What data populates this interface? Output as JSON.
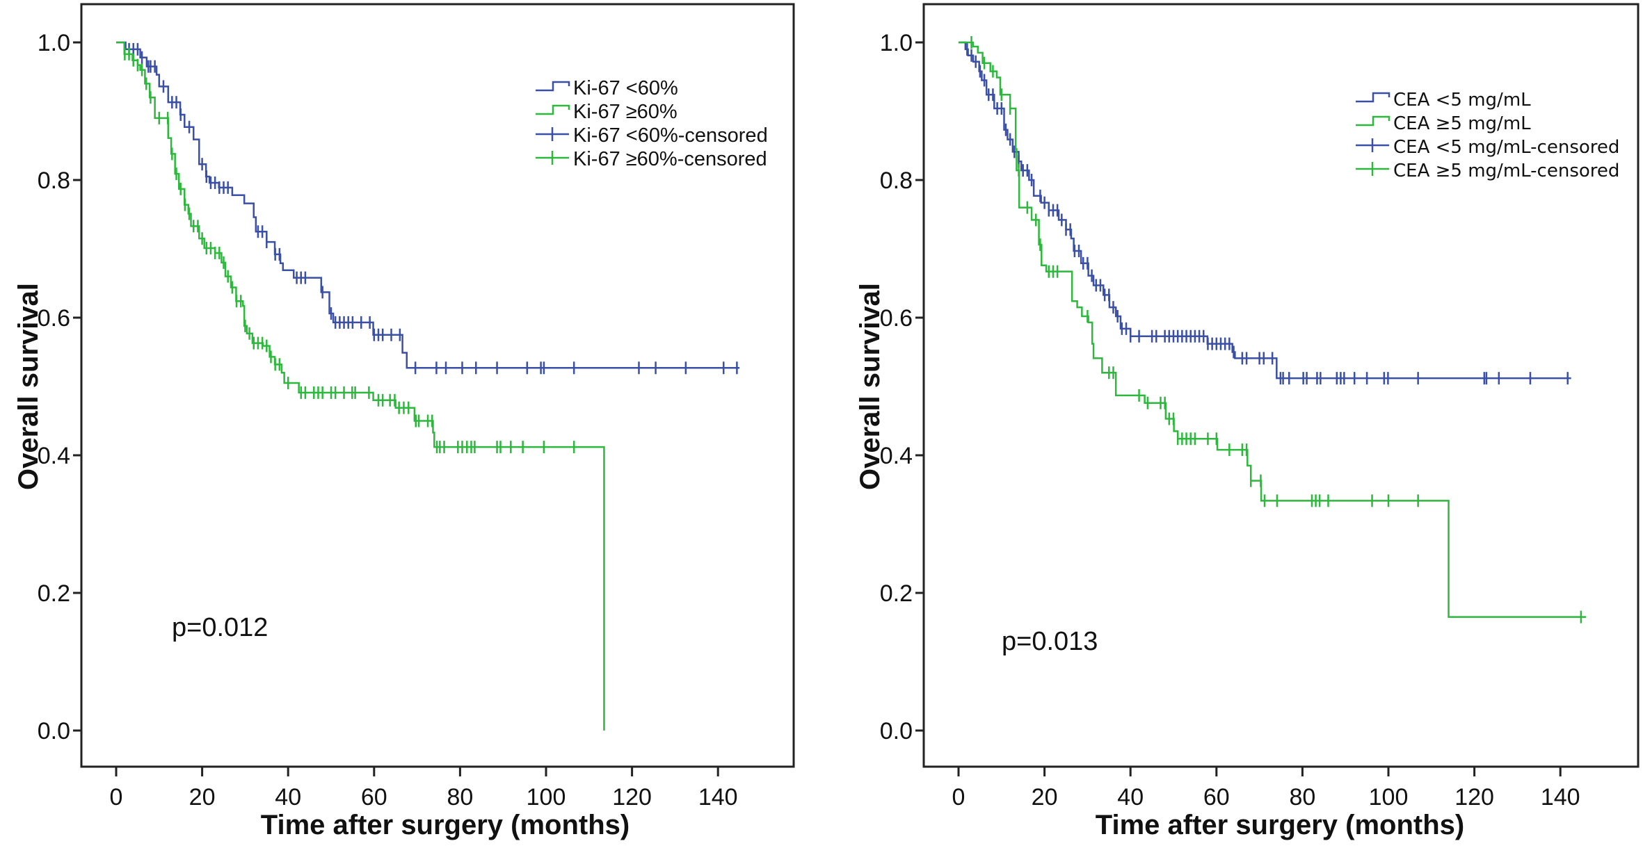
{
  "chart_data": [
    {
      "type": "line",
      "subtype": "kaplan-meier",
      "xlabel": "Time after surgery (months)",
      "ylabel": "Overall survival",
      "xlim": [
        -8,
        152
      ],
      "ylim": [
        -0.08,
        1.04
      ],
      "xticks": [
        "0",
        "20",
        "40",
        "60",
        "80",
        "100",
        "120",
        "140"
      ],
      "yticks": [
        "0.0",
        "0.2",
        "0.4",
        "0.6",
        "0.8",
        "1.0"
      ],
      "annotation": "p=0.012",
      "legend_position": "top-right",
      "legend": [
        "Ki-67 <60%",
        "Ki-67 ≥60%",
        "Ki-67 <60%-censored",
        "Ki-67 ≥60%-censored"
      ],
      "series": [
        {
          "name": "Ki-67 <60%",
          "color": "#3a4fa6",
          "end": 145,
          "steps": [
            [
              0.3,
              1.0
            ],
            [
              2.2,
              0.99
            ],
            [
              5.6,
              0.978
            ],
            [
              7.1,
              0.965
            ],
            [
              9.4,
              0.953
            ],
            [
              10,
              0.936
            ],
            [
              12.1,
              0.913
            ],
            [
              14.9,
              0.895
            ],
            [
              15.9,
              0.877
            ],
            [
              18,
              0.859
            ],
            [
              19.3,
              0.823
            ],
            [
              20.9,
              0.805
            ],
            [
              21.7,
              0.796
            ],
            [
              23.9,
              0.789
            ],
            [
              27,
              0.778
            ],
            [
              29.8,
              0.766
            ],
            [
              32,
              0.746
            ],
            [
              32.5,
              0.725
            ],
            [
              35,
              0.71
            ],
            [
              36.9,
              0.692
            ],
            [
              38.2,
              0.679
            ],
            [
              38.8,
              0.669
            ],
            [
              41.3,
              0.658
            ],
            [
              47.7,
              0.637
            ],
            [
              49.6,
              0.606
            ],
            [
              50.5,
              0.593
            ],
            [
              59.8,
              0.575
            ],
            [
              66.6,
              0.549
            ],
            [
              67.6,
              0.527
            ]
          ],
          "censored": [
            3,
            4,
            5,
            6,
            7.5,
            8,
            9,
            11,
            13,
            14,
            15,
            17,
            20,
            21,
            22,
            23,
            24,
            25,
            26,
            33,
            34,
            35,
            37,
            38,
            42,
            43,
            44,
            48,
            50,
            51,
            52,
            53,
            54,
            55,
            57,
            59,
            60,
            61,
            62,
            64,
            66,
            69.6,
            74.5,
            76.7,
            80.5,
            83.7,
            88.6,
            95.6,
            98.8,
            99.5,
            106.5,
            121.6,
            125.5,
            132.5,
            141.3,
            144.4
          ]
        },
        {
          "name": "Ki-67 ≥60%",
          "color": "#2db83d",
          "end": 113.5,
          "final_drop": 0.0,
          "steps": [
            [
              0.3,
              1.0
            ],
            [
              1.9,
              0.983
            ],
            [
              3.8,
              0.974
            ],
            [
              5,
              0.967
            ],
            [
              5.6,
              0.96
            ],
            [
              6.7,
              0.94
            ],
            [
              7.8,
              0.92
            ],
            [
              9,
              0.89
            ],
            [
              12.1,
              0.861
            ],
            [
              12.8,
              0.838
            ],
            [
              13.7,
              0.809
            ],
            [
              14.6,
              0.787
            ],
            [
              15.9,
              0.764
            ],
            [
              16.8,
              0.751
            ],
            [
              17.4,
              0.733
            ],
            [
              19.3,
              0.715
            ],
            [
              20.5,
              0.701
            ],
            [
              23,
              0.694
            ],
            [
              24.5,
              0.68
            ],
            [
              25.4,
              0.66
            ],
            [
              26.7,
              0.644
            ],
            [
              27.9,
              0.624
            ],
            [
              29.5,
              0.617
            ],
            [
              29.8,
              0.588
            ],
            [
              30.4,
              0.577
            ],
            [
              31.7,
              0.563
            ],
            [
              34.1,
              0.559
            ],
            [
              35.7,
              0.543
            ],
            [
              36.9,
              0.532
            ],
            [
              38.5,
              0.52
            ],
            [
              39.1,
              0.505
            ],
            [
              42.5,
              0.491
            ],
            [
              59.8,
              0.48
            ],
            [
              65,
              0.469
            ],
            [
              69.4,
              0.45
            ],
            [
              73.7,
              0.433
            ],
            [
              74,
              0.412
            ]
          ],
          "censored": [
            2,
            3,
            4,
            5,
            6,
            7,
            8,
            10,
            12,
            13,
            14,
            15,
            16,
            17,
            18,
            19,
            20,
            21,
            22,
            23,
            24,
            25,
            26,
            27,
            28,
            29,
            30,
            31,
            32,
            33,
            34,
            35,
            36,
            37,
            38,
            40,
            43,
            44,
            46,
            47,
            48,
            50,
            51,
            53,
            54.9,
            55.6,
            58.8,
            61,
            62,
            63.7,
            64.8,
            65.8,
            66.9,
            68,
            69.7,
            70.4,
            72.5,
            73.5,
            74.6,
            75.3,
            76.3,
            79.5,
            80.5,
            81.6,
            82.6,
            83.4,
            88.6,
            89.4,
            91.8,
            94.6,
            99.5,
            106.5
          ]
        }
      ]
    },
    {
      "type": "line",
      "subtype": "kaplan-meier",
      "xlabel": "Time after surgery (months)",
      "ylabel": "Overall survival",
      "xlim": [
        -8,
        152
      ],
      "ylim": [
        -0.08,
        1.04
      ],
      "xticks": [
        "0",
        "20",
        "40",
        "60",
        "80",
        "100",
        "120",
        "140"
      ],
      "yticks": [
        "0.0",
        "0.2",
        "0.4",
        "0.6",
        "0.8",
        "1.0"
      ],
      "annotation": "p=0.013",
      "legend_position": "top-right",
      "legend": [
        "CEA <5 mg/mL",
        "CEA ≥5 mg/mL",
        "CEA <5 mg/mL-censored",
        "CEA ≥5 mg/mL-censored"
      ],
      "series": [
        {
          "name": "CEA <5 mg/mL",
          "color": "#3a4fa6",
          "end": 142.5,
          "steps": [
            [
              0.5,
              1.0
            ],
            [
              1.6,
              0.99
            ],
            [
              2.2,
              0.981
            ],
            [
              3.4,
              0.972
            ],
            [
              4.8,
              0.958
            ],
            [
              5.4,
              0.945
            ],
            [
              6.5,
              0.924
            ],
            [
              8.3,
              0.904
            ],
            [
              10.6,
              0.873
            ],
            [
              11.4,
              0.859
            ],
            [
              12.6,
              0.841
            ],
            [
              14,
              0.827
            ],
            [
              14.6,
              0.814
            ],
            [
              16.4,
              0.8
            ],
            [
              17.5,
              0.777
            ],
            [
              19.2,
              0.767
            ],
            [
              21,
              0.756
            ],
            [
              23.3,
              0.742
            ],
            [
              25,
              0.728
            ],
            [
              26.2,
              0.715
            ],
            [
              26.8,
              0.697
            ],
            [
              28.5,
              0.679
            ],
            [
              30.2,
              0.661
            ],
            [
              31.4,
              0.647
            ],
            [
              33.7,
              0.633
            ],
            [
              35.1,
              0.615
            ],
            [
              36.6,
              0.602
            ],
            [
              37.7,
              0.584
            ],
            [
              40,
              0.573
            ],
            [
              57.9,
              0.562
            ],
            [
              63.7,
              0.55
            ],
            [
              64.3,
              0.541
            ],
            [
              74,
              0.512
            ]
          ],
          "censored": [
            2,
            3,
            4,
            5,
            6,
            7,
            8,
            9,
            10,
            11,
            12,
            13,
            14,
            15,
            16,
            17,
            19,
            20,
            21,
            22,
            23,
            24,
            25,
            26,
            27,
            28,
            29,
            30,
            31,
            32,
            33,
            34,
            35,
            36,
            37,
            38,
            39,
            40,
            42,
            45,
            46,
            48,
            49,
            50,
            51,
            52,
            53,
            54,
            55,
            56,
            57,
            58,
            59,
            60,
            61,
            62,
            63,
            64,
            66,
            67,
            70,
            71,
            73,
            74.9,
            75.5,
            76.9,
            80.2,
            81,
            83.4,
            84.2,
            88,
            88.9,
            89.7,
            92.1,
            95,
            99,
            99.9,
            106.9,
            122.3,
            122.8,
            125.7,
            133,
            141.7
          ]
        },
        {
          "name": "CEA ≥5 mg/mL",
          "color": "#2db83d",
          "end": 146,
          "drop_at": 114,
          "final_drop": 0.165,
          "steps": [
            [
              3.4,
              0.994
            ],
            [
              4.5,
              0.985
            ],
            [
              5.6,
              0.97
            ],
            [
              7.4,
              0.958
            ],
            [
              8.9,
              0.949
            ],
            [
              9.7,
              0.924
            ],
            [
              12,
              0.904
            ],
            [
              13.3,
              0.845
            ],
            [
              13.5,
              0.814
            ],
            [
              14.1,
              0.76
            ],
            [
              17,
              0.742
            ],
            [
              18.7,
              0.706
            ],
            [
              19.3,
              0.676
            ],
            [
              20.4,
              0.667
            ],
            [
              26.4,
              0.624
            ],
            [
              27.6,
              0.615
            ],
            [
              28.7,
              0.602
            ],
            [
              30.2,
              0.593
            ],
            [
              31.1,
              0.562
            ],
            [
              31.4,
              0.541
            ],
            [
              33.4,
              0.52
            ],
            [
              36.6,
              0.487
            ],
            [
              43.3,
              0.476
            ],
            [
              48.2,
              0.453
            ],
            [
              50.1,
              0.435
            ],
            [
              51,
              0.424
            ],
            [
              60.2,
              0.408
            ],
            [
              67.2,
              0.385
            ],
            [
              68,
              0.363
            ],
            [
              70.4,
              0.334
            ]
          ],
          "censored": [
            3,
            6,
            8,
            10,
            12,
            14,
            16,
            18,
            19,
            21,
            22,
            23,
            30,
            35,
            36,
            42,
            44,
            47,
            48,
            49,
            50,
            51,
            52,
            53,
            54,
            55,
            58,
            60,
            63,
            66,
            67,
            68,
            70.3,
            71.2,
            74.1,
            82.2,
            83.1,
            84,
            86,
            96.2,
            100,
            106.9,
            144.8
          ]
        }
      ]
    }
  ]
}
